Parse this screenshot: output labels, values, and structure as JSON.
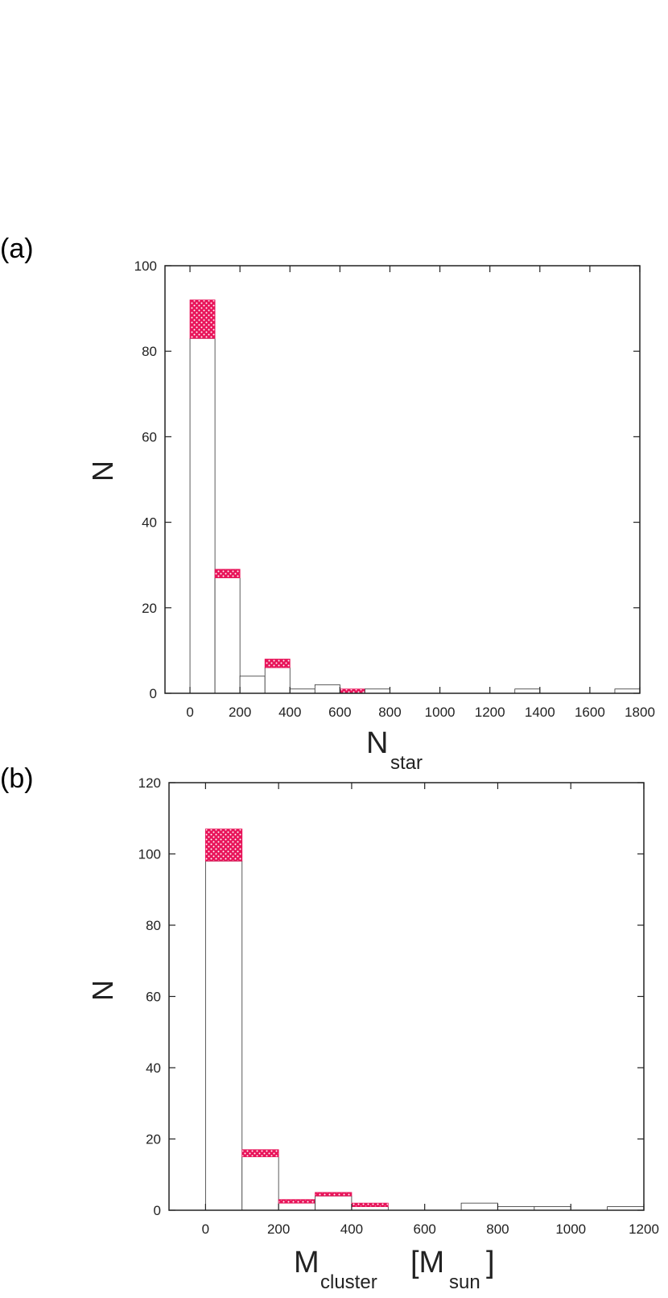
{
  "colors": {
    "accent": "#e8145a",
    "dots": "#ffffff",
    "axis": "#222222"
  },
  "chart_data": [
    {
      "type": "bar",
      "panel_label": "(a)",
      "stacked": true,
      "bin_width": 100,
      "x_bins": [
        0,
        100,
        200,
        300,
        400,
        500,
        600,
        700,
        800,
        900,
        1000,
        1100,
        1200,
        1300,
        1400,
        1500,
        1600,
        1700
      ],
      "series": [
        {
          "values": [
            83,
            27,
            4,
            6,
            1,
            2,
            0,
            1,
            0,
            0,
            0,
            0,
            0,
            1,
            0,
            0,
            0,
            1
          ]
        },
        {
          "values": [
            9,
            2,
            0,
            2,
            0,
            0,
            1,
            0,
            0,
            0,
            0,
            0,
            0,
            0,
            0,
            0,
            0,
            0
          ]
        }
      ],
      "xlim": [
        -100,
        1800
      ],
      "ylim": [
        0,
        100
      ],
      "xticks": [
        "0",
        "200",
        "400",
        "600",
        "800",
        "1000",
        "1200",
        "1400",
        "1600",
        "1800"
      ],
      "yticks": [
        "0",
        "20",
        "40",
        "60",
        "80",
        "100"
      ],
      "ylabel": "N",
      "xlabel": {
        "main": "N",
        "sub": "star"
      }
    },
    {
      "type": "bar",
      "panel_label": "(b)",
      "stacked": true,
      "bin_width": 100,
      "x_bins": [
        0,
        100,
        200,
        300,
        400,
        500,
        600,
        700,
        800,
        900,
        1000,
        1100
      ],
      "series": [
        {
          "values": [
            98,
            15,
            2,
            4,
            1,
            0,
            0,
            2,
            1,
            1,
            0,
            1
          ]
        },
        {
          "values": [
            9,
            2,
            1,
            1,
            1,
            0,
            0,
            0,
            0,
            0,
            0,
            0
          ]
        }
      ],
      "xlim": [
        -100,
        1200
      ],
      "ylim": [
        0,
        120
      ],
      "xticks": [
        "0",
        "200",
        "400",
        "600",
        "800",
        "1000",
        "1200"
      ],
      "yticks": [
        "0",
        "20",
        "40",
        "60",
        "80",
        "100",
        "120"
      ],
      "ylabel": "N",
      "xlabel": {
        "main": "M",
        "sub": "cluster",
        "main2": "[M",
        "sub2": "sun",
        "close": "]"
      }
    }
  ]
}
